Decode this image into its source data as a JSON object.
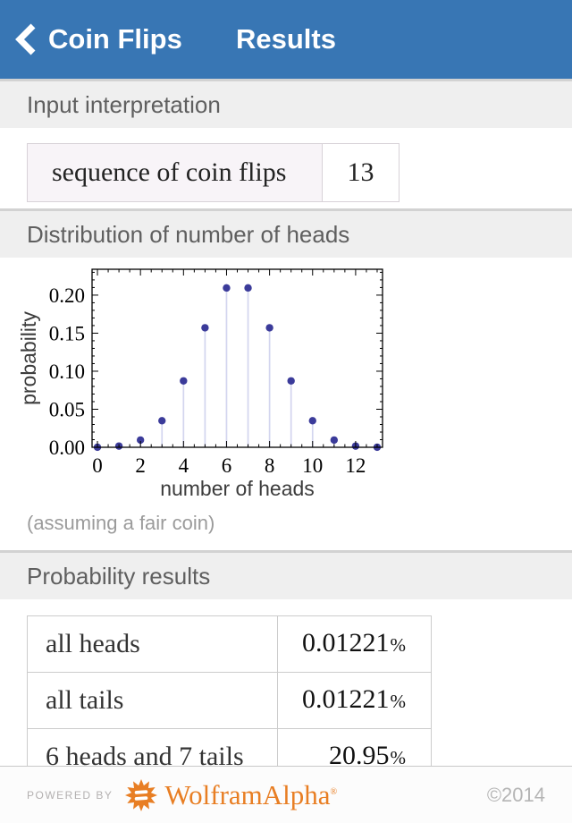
{
  "header": {
    "back_label": "Coin Flips",
    "title": "Results"
  },
  "sections": {
    "input": "Input interpretation",
    "distribution": "Distribution of number of heads",
    "probability": "Probability results"
  },
  "input_interpretation": {
    "label": "sequence of coin flips",
    "value": "13"
  },
  "chart_data": {
    "type": "stem",
    "xlabel": "number of heads",
    "ylabel": "probability",
    "x": [
      0,
      1,
      2,
      3,
      4,
      5,
      6,
      7,
      8,
      9,
      10,
      11,
      12,
      13
    ],
    "y": [
      0.000122,
      0.001587,
      0.009521,
      0.034912,
      0.08728,
      0.157104,
      0.209473,
      0.209473,
      0.157104,
      0.08728,
      0.034912,
      0.009521,
      0.001587,
      0.000122
    ],
    "xticks": [
      0,
      2,
      4,
      6,
      8,
      10,
      12
    ],
    "yticks": [
      0,
      0.05,
      0.1,
      0.15,
      0.2
    ],
    "ytick_labels": [
      "0.00",
      "0.05",
      "0.10",
      "0.15",
      "0.20"
    ],
    "xlim": [
      -0.25,
      13.25
    ],
    "ylim": [
      0,
      0.234
    ],
    "grid": false,
    "legend": "none",
    "colors": {
      "stem": "#d3d5ef",
      "point": "#3b3b9a",
      "frame": "#000000"
    }
  },
  "chart_caption": "(assuming a fair coin)",
  "probability_results": {
    "rows": [
      {
        "label": "all heads",
        "value": "0.01221",
        "unit": "%"
      },
      {
        "label": "all tails",
        "value": "0.01221",
        "unit": "%"
      },
      {
        "label": "6 heads and 7 tails",
        "value": "20.95",
        "unit": "%"
      }
    ]
  },
  "footer": {
    "powered_by": "POWERED BY",
    "brand": "WolframAlpha",
    "registered_mark": "®",
    "copyright": "©2014"
  },
  "colors": {
    "nav_bar": "#3876b4",
    "section_bg": "#efefef",
    "brand_orange": "#e87e23",
    "input_cell_bg": "#f8f4f8"
  }
}
